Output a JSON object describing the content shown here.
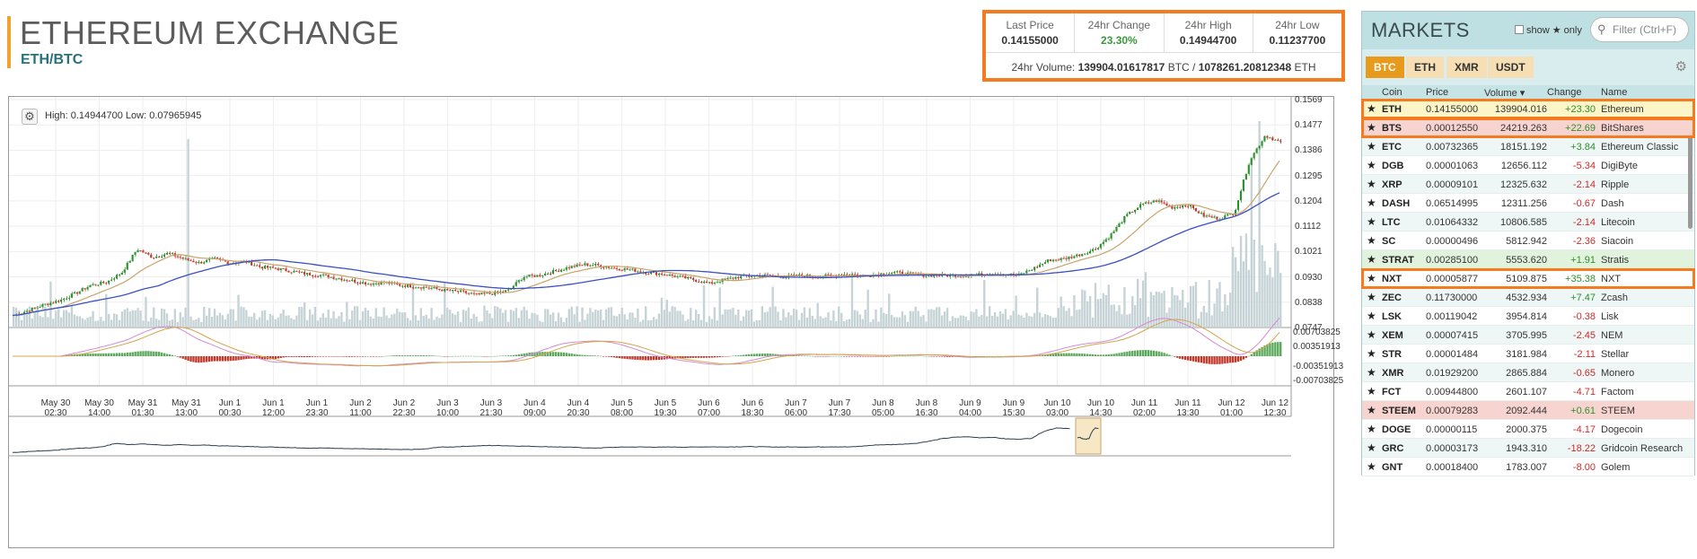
{
  "header": {
    "title": "ETHEREUM EXCHANGE",
    "pair": "ETH/BTC"
  },
  "stats": {
    "last_price_label": "Last Price",
    "last_price": "0.14155000",
    "change_label": "24hr Change",
    "change": "23.30%",
    "high_label": "24hr High",
    "high": "0.14944700",
    "low_label": "24hr Low",
    "low": "0.11237700",
    "volume_label": "24hr Volume:",
    "volume_btc": "139904.01617817",
    "volume_btc_unit": "BTC /",
    "volume_eth": "1078261.20812348",
    "volume_eth_unit": "ETH"
  },
  "chart": {
    "hilo": "High: 0.14944700   Low: 0.07965945",
    "price_ticks": [
      "0.1569",
      "0.1477",
      "0.1386",
      "0.1295",
      "0.1204",
      "0.1112",
      "0.1021",
      "0.0930",
      "0.0838",
      "0.0747"
    ],
    "macd_ticks": [
      "0.00703825",
      "0.00351913",
      "-0.00351913",
      "-0.00703825"
    ],
    "x_ticks": [
      [
        "May 30",
        "02:30"
      ],
      [
        "May 30",
        "14:00"
      ],
      [
        "May 31",
        "01:30"
      ],
      [
        "May 31",
        "13:00"
      ],
      [
        "Jun 1",
        "00:30"
      ],
      [
        "Jun 1",
        "12:00"
      ],
      [
        "Jun 1",
        "23:30"
      ],
      [
        "Jun 2",
        "11:00"
      ],
      [
        "Jun 2",
        "22:30"
      ],
      [
        "Jun 3",
        "10:00"
      ],
      [
        "Jun 3",
        "21:30"
      ],
      [
        "Jun 4",
        "09:00"
      ],
      [
        "Jun 4",
        "20:30"
      ],
      [
        "Jun 5",
        "08:00"
      ],
      [
        "Jun 5",
        "19:30"
      ],
      [
        "Jun 6",
        "07:00"
      ],
      [
        "Jun 6",
        "18:30"
      ],
      [
        "Jun 7",
        "06:00"
      ],
      [
        "Jun 7",
        "17:30"
      ],
      [
        "Jun 8",
        "05:00"
      ],
      [
        "Jun 8",
        "16:30"
      ],
      [
        "Jun 9",
        "04:00"
      ],
      [
        "Jun 9",
        "15:30"
      ],
      [
        "Jun 10",
        "03:00"
      ],
      [
        "Jun 10",
        "14:30"
      ],
      [
        "Jun 11",
        "02:00"
      ],
      [
        "Jun 11",
        "13:30"
      ],
      [
        "Jun 12",
        "01:00"
      ],
      [
        "Jun 12",
        "12:30"
      ]
    ],
    "price_path": [
      0.079,
      0.081,
      0.083,
      0.0845,
      0.087,
      0.09,
      0.091,
      0.0945,
      0.103,
      0.1,
      0.1015,
      0.0995,
      0.098,
      0.0995,
      0.098,
      0.0985,
      0.0965,
      0.096,
      0.095,
      0.094,
      0.0935,
      0.0925,
      0.0915,
      0.0905,
      0.091,
      0.09,
      0.0895,
      0.089,
      0.088,
      0.0875,
      0.0865,
      0.087,
      0.088,
      0.093,
      0.0935,
      0.095,
      0.0965,
      0.0975,
      0.097,
      0.096,
      0.0955,
      0.0945,
      0.094,
      0.093,
      0.092,
      0.0905,
      0.092,
      0.093,
      0.0935,
      0.0935,
      0.093,
      0.0935,
      0.093,
      0.0935,
      0.094,
      0.0935,
      0.094,
      0.0945,
      0.094,
      0.0935,
      0.0935,
      0.0935,
      0.0935,
      0.094,
      0.094,
      0.0935,
      0.096,
      0.099,
      0.0995,
      0.101,
      0.103,
      0.108,
      0.115,
      0.119,
      0.1205,
      0.118,
      0.119,
      0.115,
      0.114,
      0.116,
      0.135,
      0.144,
      0.1415
    ]
  },
  "markets": {
    "title": "MARKETS",
    "show_label": "show ★ only",
    "filter_placeholder": "Filter (Ctrl+F)",
    "tabs": [
      "BTC",
      "ETH",
      "XMR",
      "USDT"
    ],
    "columns": [
      "Coin",
      "Price",
      "Volume ▾",
      "Change",
      "Name"
    ],
    "rows": [
      {
        "coin": "ETH",
        "price": "0.14155000",
        "volume": "139904.016",
        "change": "+23.30",
        "name": "Ethereum",
        "style": "hl-yellow boxed"
      },
      {
        "coin": "BTS",
        "price": "0.00012550",
        "volume": "24219.263",
        "change": "+22.69",
        "name": "BitShares",
        "style": "hl-red boxed"
      },
      {
        "coin": "ETC",
        "price": "0.00732365",
        "volume": "18151.192",
        "change": "+3.84",
        "name": "Ethereum Classic",
        "style": ""
      },
      {
        "coin": "DGB",
        "price": "0.00001063",
        "volume": "12656.112",
        "change": "-5.34",
        "name": "DigiByte",
        "style": ""
      },
      {
        "coin": "XRP",
        "price": "0.00009101",
        "volume": "12325.632",
        "change": "-2.14",
        "name": "Ripple",
        "style": ""
      },
      {
        "coin": "DASH",
        "price": "0.06514995",
        "volume": "12311.256",
        "change": "-0.67",
        "name": "Dash",
        "style": ""
      },
      {
        "coin": "LTC",
        "price": "0.01064332",
        "volume": "10806.585",
        "change": "-2.14",
        "name": "Litecoin",
        "style": ""
      },
      {
        "coin": "SC",
        "price": "0.00000496",
        "volume": "5812.942",
        "change": "-2.36",
        "name": "Siacoin",
        "style": ""
      },
      {
        "coin": "STRAT",
        "price": "0.00285100",
        "volume": "5553.620",
        "change": "+1.91",
        "name": "Stratis",
        "style": "hl-green"
      },
      {
        "coin": "NXT",
        "price": "0.00005877",
        "volume": "5109.875",
        "change": "+35.38",
        "name": "NXT",
        "style": "boxed"
      },
      {
        "coin": "ZEC",
        "price": "0.11730000",
        "volume": "4532.934",
        "change": "+7.47",
        "name": "Zcash",
        "style": ""
      },
      {
        "coin": "LSK",
        "price": "0.00119042",
        "volume": "3954.814",
        "change": "-0.38",
        "name": "Lisk",
        "style": ""
      },
      {
        "coin": "XEM",
        "price": "0.00007415",
        "volume": "3705.995",
        "change": "-2.45",
        "name": "NEM",
        "style": ""
      },
      {
        "coin": "STR",
        "price": "0.00001484",
        "volume": "3181.984",
        "change": "-2.11",
        "name": "Stellar",
        "style": ""
      },
      {
        "coin": "XMR",
        "price": "0.01929200",
        "volume": "2865.884",
        "change": "-0.65",
        "name": "Monero",
        "style": ""
      },
      {
        "coin": "FCT",
        "price": "0.00944800",
        "volume": "2601.107",
        "change": "-4.71",
        "name": "Factom",
        "style": ""
      },
      {
        "coin": "STEEM",
        "price": "0.00079283",
        "volume": "2092.444",
        "change": "+0.61",
        "name": "STEEM",
        "style": "hl-pink"
      },
      {
        "coin": "DOGE",
        "price": "0.00000115",
        "volume": "2000.375",
        "change": "-4.17",
        "name": "Dogecoin",
        "style": ""
      },
      {
        "coin": "GRC",
        "price": "0.00003173",
        "volume": "1943.310",
        "change": "-18.22",
        "name": "Gridcoin Research",
        "style": ""
      },
      {
        "coin": "GNT",
        "price": "0.00018400",
        "volume": "1783.007",
        "change": "-8.00",
        "name": "Golem",
        "style": ""
      }
    ]
  },
  "colors": {
    "accent_orange": "#f47b20",
    "tab_active": "#e89a1c",
    "ma_blue": "#3b4fc4",
    "ma_tan": "#c9a36a",
    "candle_up": "#2d8f2d",
    "candle_down": "#c0392b"
  }
}
